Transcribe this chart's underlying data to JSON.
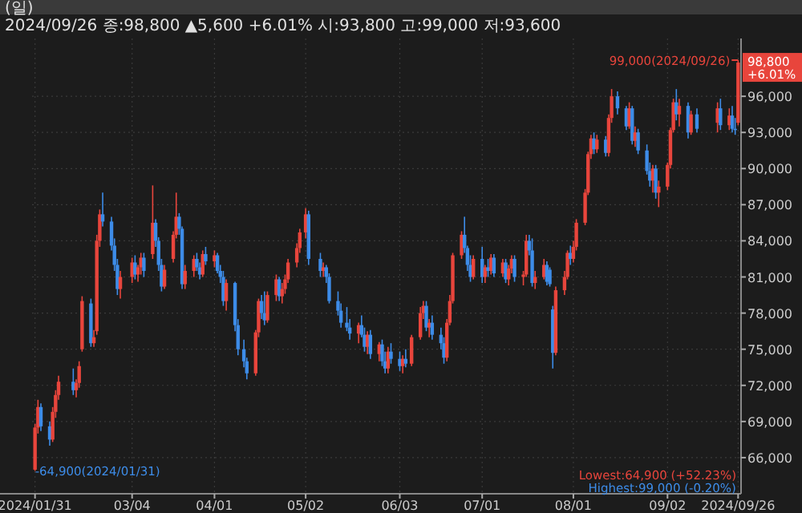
{
  "chart_data": {
    "type": "candlestick",
    "title": "(일)",
    "subtitle": "2024/09/26 종:98,800 ▲5,600 +6.01% 시:93,800 고:99,000 저:93,600",
    "x": [
      "2024-01-31",
      "2024-02-01",
      "2024-02-02",
      "2024-02-05",
      "2024-02-06",
      "2024-02-07",
      "2024-02-08",
      "2024-02-13",
      "2024-02-14",
      "2024-02-15",
      "2024-02-16",
      "2024-02-19",
      "2024-02-20",
      "2024-02-21",
      "2024-02-22",
      "2024-02-23",
      "2024-02-26",
      "2024-02-27",
      "2024-02-28",
      "2024-02-29",
      "2024-03-04",
      "2024-03-05",
      "2024-03-06",
      "2024-03-07",
      "2024-03-08",
      "2024-03-11",
      "2024-03-12",
      "2024-03-13",
      "2024-03-14",
      "2024-03-15",
      "2024-03-18",
      "2024-03-19",
      "2024-03-20",
      "2024-03-21",
      "2024-03-22",
      "2024-03-25",
      "2024-03-26",
      "2024-03-27",
      "2024-03-28",
      "2024-03-29",
      "2024-04-01",
      "2024-04-02",
      "2024-04-03",
      "2024-04-04",
      "2024-04-05",
      "2024-04-08",
      "2024-04-09",
      "2024-04-11",
      "2024-04-12",
      "2024-04-15",
      "2024-04-16",
      "2024-04-17",
      "2024-04-18",
      "2024-04-19",
      "2024-04-22",
      "2024-04-23",
      "2024-04-24",
      "2024-04-25",
      "2024-04-26",
      "2024-04-29",
      "2024-04-30",
      "2024-05-02",
      "2024-05-03",
      "2024-05-07",
      "2024-05-08",
      "2024-05-09",
      "2024-05-10",
      "2024-05-13",
      "2024-05-14",
      "2024-05-16",
      "2024-05-17",
      "2024-05-20",
      "2024-05-21",
      "2024-05-22",
      "2024-05-23",
      "2024-05-24",
      "2024-05-27",
      "2024-05-28",
      "2024-05-29",
      "2024-05-30",
      "2024-05-31",
      "2024-06-03",
      "2024-06-04",
      "2024-06-05",
      "2024-06-07",
      "2024-06-10",
      "2024-06-11",
      "2024-06-12",
      "2024-06-13",
      "2024-06-14",
      "2024-06-17",
      "2024-06-18",
      "2024-06-19",
      "2024-06-20",
      "2024-06-21",
      "2024-06-24",
      "2024-06-25",
      "2024-06-26",
      "2024-06-27",
      "2024-06-28",
      "2024-07-01",
      "2024-07-02",
      "2024-07-03",
      "2024-07-04",
      "2024-07-05",
      "2024-07-08",
      "2024-07-09",
      "2024-07-10",
      "2024-07-11",
      "2024-07-12",
      "2024-07-15",
      "2024-07-16",
      "2024-07-17",
      "2024-07-18",
      "2024-07-19",
      "2024-07-22",
      "2024-07-23",
      "2024-07-24",
      "2024-07-25",
      "2024-07-26",
      "2024-07-29",
      "2024-07-30",
      "2024-07-31",
      "2024-08-01",
      "2024-08-02",
      "2024-08-05",
      "2024-08-06",
      "2024-08-07",
      "2024-08-08",
      "2024-08-09",
      "2024-08-12",
      "2024-08-13",
      "2024-08-14",
      "2024-08-16",
      "2024-08-19",
      "2024-08-20",
      "2024-08-21",
      "2024-08-22",
      "2024-08-23",
      "2024-08-26",
      "2024-08-27",
      "2024-08-28",
      "2024-08-29",
      "2024-08-30",
      "2024-09-02",
      "2024-09-03",
      "2024-09-04",
      "2024-09-05",
      "2024-09-06",
      "2024-09-09",
      "2024-09-10",
      "2024-09-12",
      "2024-09-19",
      "2024-09-20",
      "2024-09-23",
      "2024-09-24",
      "2024-09-25",
      "2024-09-26"
    ],
    "ohlc": [
      [
        65000,
        68800,
        64900,
        68500
      ],
      [
        68500,
        70800,
        68000,
        70200
      ],
      [
        70200,
        70500,
        68200,
        68600
      ],
      [
        68600,
        69000,
        67000,
        67500
      ],
      [
        67500,
        70200,
        67300,
        69800
      ],
      [
        69800,
        71600,
        69300,
        71200
      ],
      [
        71200,
        72800,
        70800,
        72300
      ],
      [
        72300,
        73400,
        71200,
        71600
      ],
      [
        71600,
        72500,
        71000,
        72200
      ],
      [
        72200,
        74000,
        71800,
        73600
      ],
      [
        75000,
        79400,
        74800,
        79000
      ],
      [
        78800,
        79200,
        75200,
        75500
      ],
      [
        75500,
        76600,
        75200,
        76000
      ],
      [
        76500,
        84500,
        76200,
        84000
      ],
      [
        84000,
        86600,
        83500,
        86200
      ],
      [
        86200,
        88000,
        85200,
        85600
      ],
      [
        85600,
        86000,
        83200,
        83600
      ],
      [
        83600,
        84200,
        81500,
        82000
      ],
      [
        82000,
        82500,
        79500,
        80000
      ],
      [
        80000,
        81500,
        79200,
        81000
      ],
      [
        81000,
        82600,
        80500,
        82200
      ],
      [
        82200,
        82800,
        80800,
        81200
      ],
      [
        81200,
        82000,
        80600,
        81800
      ],
      [
        81800,
        83000,
        81200,
        82600
      ],
      [
        82600,
        83000,
        81000,
        81500
      ],
      [
        82900,
        88600,
        82500,
        85500
      ],
      [
        85500,
        85800,
        83500,
        84000
      ],
      [
        84000,
        84300,
        81500,
        82000
      ],
      [
        82000,
        82500,
        79800,
        80200
      ],
      [
        80200,
        82000,
        80000,
        81600
      ],
      [
        82500,
        84800,
        82200,
        84500
      ],
      [
        84500,
        88000,
        84200,
        86000
      ],
      [
        86000,
        86300,
        84500,
        85000
      ],
      [
        85000,
        85200,
        80000,
        80400
      ],
      [
        80400,
        82000,
        80000,
        81500
      ],
      [
        81500,
        82800,
        81000,
        82500
      ],
      [
        82500,
        83000,
        81500,
        81800
      ],
      [
        81800,
        82200,
        80800,
        81200
      ],
      [
        81200,
        83200,
        81000,
        82900
      ],
      [
        82900,
        83500,
        82000,
        82300
      ],
      [
        82300,
        83200,
        81800,
        82800
      ],
      [
        82800,
        83000,
        81300,
        81500
      ],
      [
        81500,
        82000,
        80500,
        81000
      ],
      [
        81000,
        81500,
        78600,
        79000
      ],
      [
        79000,
        80800,
        78200,
        80500
      ],
      [
        80500,
        80600,
        76500,
        77000
      ],
      [
        77000,
        77500,
        74500,
        75000
      ],
      [
        75000,
        75800,
        73500,
        74000
      ],
      [
        74000,
        74300,
        72500,
        73000
      ],
      [
        73000,
        76600,
        72800,
        76400
      ],
      [
        76400,
        79200,
        76000,
        79000
      ],
      [
        79000,
        79500,
        77500,
        78000
      ],
      [
        78000,
        79800,
        77000,
        77400
      ],
      [
        77400,
        79800,
        77200,
        79500
      ],
      [
        79500,
        81200,
        79000,
        80800
      ],
      [
        80800,
        81000,
        79000,
        79400
      ],
      [
        79400,
        80500,
        78800,
        80000
      ],
      [
        80000,
        81200,
        79600,
        80800
      ],
      [
        80800,
        82500,
        80500,
        82200
      ],
      [
        82200,
        83800,
        81800,
        83400
      ],
      [
        83400,
        85000,
        83000,
        84700
      ],
      [
        84700,
        86700,
        84200,
        86200
      ],
      [
        86200,
        86500,
        82000,
        82500
      ],
      [
        82500,
        83000,
        81000,
        81500
      ],
      [
        81500,
        82200,
        81000,
        81800
      ],
      [
        81800,
        82000,
        80500,
        81000
      ],
      [
        81000,
        81300,
        78800,
        79000
      ],
      [
        79000,
        79800,
        77800,
        78200
      ],
      [
        78200,
        78800,
        76800,
        77200
      ],
      [
        77200,
        78500,
        76500,
        76800
      ],
      [
        76800,
        77500,
        75800,
        76300
      ],
      [
        76300,
        77200,
        75500,
        77000
      ],
      [
        77000,
        77800,
        76000,
        76200
      ],
      [
        76200,
        76800,
        74800,
        75200
      ],
      [
        75200,
        76500,
        74600,
        76200
      ],
      [
        76200,
        76600,
        74200,
        74600
      ],
      [
        74600,
        75600,
        74000,
        75400
      ],
      [
        75400,
        75800,
        73600,
        74000
      ],
      [
        74000,
        74800,
        73000,
        73400
      ],
      [
        73400,
        75200,
        73000,
        74800
      ],
      [
        74800,
        75500,
        73800,
        74200
      ],
      [
        74200,
        74800,
        73200,
        73600
      ],
      [
        73600,
        74500,
        73000,
        74200
      ],
      [
        74200,
        75000,
        73500,
        73800
      ],
      [
        73800,
        76200,
        73600,
        76000
      ],
      [
        76000,
        78500,
        75800,
        78000
      ],
      [
        78000,
        79000,
        77500,
        78600
      ],
      [
        78600,
        79000,
        76500,
        76800
      ],
      [
        76800,
        77500,
        76000,
        77200
      ],
      [
        77200,
        77800,
        75800,
        76200
      ],
      [
        76200,
        76800,
        75000,
        75500
      ],
      [
        75500,
        76000,
        73800,
        74300
      ],
      [
        74300,
        77500,
        74000,
        77200
      ],
      [
        77200,
        79500,
        77000,
        79000
      ],
      [
        79000,
        83000,
        78800,
        82800
      ],
      [
        82800,
        84800,
        82500,
        84500
      ],
      [
        84500,
        86000,
        83000,
        83400
      ],
      [
        83400,
        83600,
        81500,
        82000
      ],
      [
        82000,
        82800,
        80600,
        81000
      ],
      [
        81000,
        82800,
        80800,
        82500
      ],
      [
        82500,
        83500,
        80500,
        81000
      ],
      [
        81000,
        82000,
        80500,
        81800
      ],
      [
        81800,
        82500,
        81000,
        81500
      ],
      [
        81500,
        82900,
        81200,
        82600
      ],
      [
        82600,
        82900,
        81000,
        81300
      ],
      [
        81300,
        82500,
        81000,
        82200
      ],
      [
        82200,
        82500,
        80500,
        80800
      ],
      [
        80800,
        82000,
        80300,
        81700
      ],
      [
        81700,
        82800,
        81300,
        82500
      ],
      [
        82500,
        82800,
        80600,
        81000
      ],
      [
        81000,
        81500,
        80300,
        81200
      ],
      [
        81200,
        84500,
        81000,
        84000
      ],
      [
        84000,
        84500,
        82800,
        83200
      ],
      [
        83200,
        84200,
        80200,
        80500
      ],
      [
        80500,
        81500,
        80000,
        81000
      ],
      [
        81000,
        82500,
        80800,
        82000
      ],
      [
        82000,
        82300,
        80300,
        80600
      ],
      [
        81600,
        81800,
        80200,
        80400
      ],
      [
        78300,
        78600,
        73400,
        74700
      ],
      [
        74700,
        80200,
        74500,
        79900
      ],
      [
        79900,
        81500,
        79500,
        81000
      ],
      [
        81000,
        83200,
        80800,
        83000
      ],
      [
        83000,
        83600,
        82000,
        82500
      ],
      [
        82500,
        84000,
        82200,
        83500
      ],
      [
        83500,
        85800,
        83200,
        85500
      ],
      [
        85500,
        88300,
        85300,
        88000
      ],
      [
        88000,
        91400,
        87800,
        91200
      ],
      [
        91200,
        92800,
        90800,
        92500
      ],
      [
        92500,
        93000,
        91200,
        91600
      ],
      [
        91600,
        92800,
        91300,
        92400
      ],
      [
        92400,
        92700,
        91000,
        91300
      ],
      [
        91300,
        94500,
        91000,
        94200
      ],
      [
        94200,
        96600,
        93800,
        96000
      ],
      [
        96000,
        96400,
        94500,
        95000
      ],
      [
        95000,
        95200,
        93200,
        93500
      ],
      [
        93500,
        95500,
        93300,
        95000
      ],
      [
        95000,
        95200,
        92000,
        92300
      ],
      [
        92300,
        93500,
        91800,
        93000
      ],
      [
        93000,
        93300,
        91200,
        91500
      ],
      [
        91500,
        92000,
        89500,
        89800
      ],
      [
        89800,
        90500,
        88500,
        89000
      ],
      [
        89000,
        90300,
        88000,
        90000
      ],
      [
        90000,
        90300,
        87500,
        88000
      ],
      [
        88000,
        89000,
        86800,
        88500
      ],
      [
        88500,
        90500,
        88200,
        90300
      ],
      [
        90300,
        93400,
        90000,
        93200
      ],
      [
        93200,
        95800,
        93000,
        95500
      ],
      [
        95500,
        96600,
        94000,
        94500
      ],
      [
        94500,
        95800,
        93500,
        95200
      ],
      [
        95200,
        95500,
        92500,
        93000
      ],
      [
        93000,
        94800,
        92800,
        94500
      ],
      [
        94500,
        95000,
        93000,
        93300
      ],
      [
        93800,
        95500,
        93000,
        95000
      ],
      [
        95000,
        95800,
        93200,
        93600
      ],
      [
        93600,
        95000,
        93200,
        94400
      ],
      [
        94400,
        95200,
        93000,
        93300
      ],
      [
        93300,
        94200,
        92800,
        93200
      ],
      [
        93800,
        99000,
        93600,
        98800
      ]
    ],
    "xlim": [
      "2024-01-30",
      "2024-09-27"
    ],
    "xticks": [
      {
        "value": "2024-01-31",
        "label": "2024/01/31"
      },
      {
        "value": "2024-03-04",
        "label": "03/04"
      },
      {
        "value": "2024-04-01",
        "label": "04/01"
      },
      {
        "value": "2024-05-02",
        "label": "05/02"
      },
      {
        "value": "2024-06-03",
        "label": "06/03"
      },
      {
        "value": "2024-07-01",
        "label": "07/01"
      },
      {
        "value": "2024-08-01",
        "label": "08/01"
      },
      {
        "value": "2024-09-02",
        "label": "09/02"
      },
      {
        "value": "2024-09-26",
        "label": "2024/09/26"
      }
    ],
    "ylim": [
      63000,
      100800
    ],
    "yticks": [
      {
        "value": 66000,
        "label": "66,000"
      },
      {
        "value": 69000,
        "label": "69,000"
      },
      {
        "value": 72000,
        "label": "72,000"
      },
      {
        "value": 75000,
        "label": "75,000"
      },
      {
        "value": 78000,
        "label": "78,000"
      },
      {
        "value": 81000,
        "label": "81,000"
      },
      {
        "value": 84000,
        "label": "84,000"
      },
      {
        "value": 87000,
        "label": "87,000"
      },
      {
        "value": 90000,
        "label": "90,000"
      },
      {
        "value": 93000,
        "label": "93,000"
      },
      {
        "value": 96000,
        "label": "96,000"
      }
    ],
    "grid": true,
    "annotations": [
      {
        "text": "99,000(2024/09/26)",
        "x": "2024-09-26",
        "y": 99000
      },
      {
        "text": "-64,900(2024/01/31)",
        "x": "2024-01-31",
        "y": 64900
      },
      {
        "text": "98,800 +6.01%",
        "x": "2024-09-26",
        "y": 98800
      },
      "Lowest:64,900 (+52.23%)",
      "Highest:99,000 (-0.20%)"
    ]
  }
}
